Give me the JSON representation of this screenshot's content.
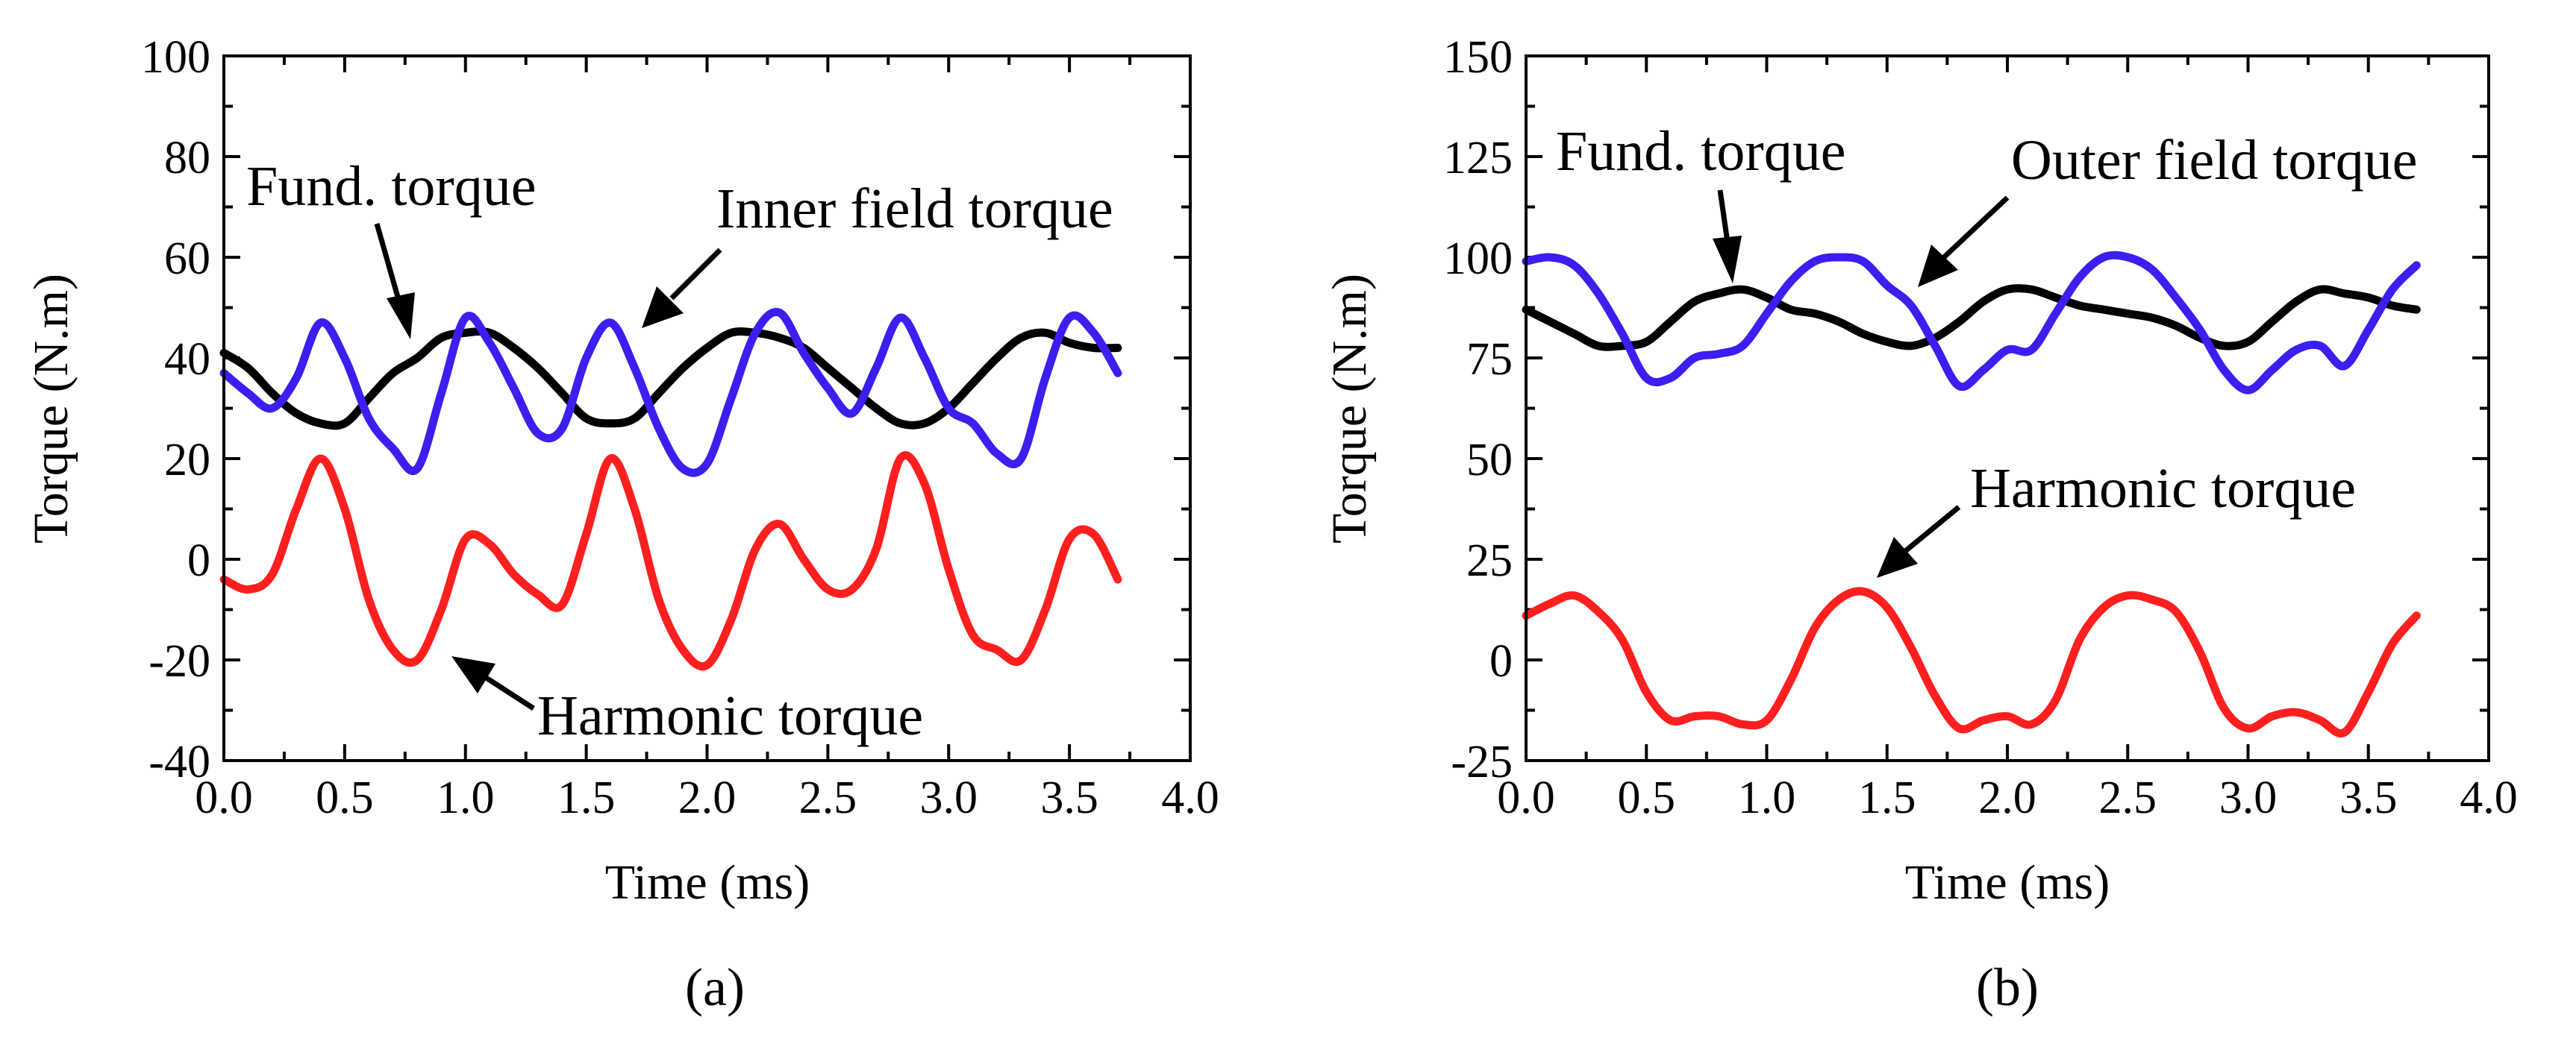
{
  "chart_data": [
    {
      "panel": "(a)",
      "type": "line",
      "xlabel": "Time (ms)",
      "ylabel": "Torque (N.m)",
      "xlim": [
        0,
        4
      ],
      "ylim": [
        -40,
        100
      ],
      "xticks": [
        "0.0",
        "0.5",
        "1.0",
        "1.5",
        "2.0",
        "2.5",
        "3.0",
        "3.5",
        "4.0"
      ],
      "yticks": [
        "-40",
        "-20",
        "0",
        "20",
        "40",
        "60",
        "80",
        "100"
      ],
      "series": [
        {
          "name": "Fund. torque",
          "color": "#000000",
          "x": [
            0,
            0.1,
            0.2,
            0.3,
            0.4,
            0.5,
            0.6,
            0.7,
            0.8,
            0.9,
            1.0,
            1.1,
            1.2,
            1.3,
            1.4,
            1.5,
            1.6,
            1.7,
            1.8,
            1.9,
            2.0,
            2.1,
            2.2,
            2.3,
            2.4,
            2.5,
            2.6,
            2.7,
            2.8,
            2.9,
            3.0,
            3.1,
            3.2,
            3.3,
            3.4,
            3.5,
            3.6,
            3.7
          ],
          "y": [
            41,
            38,
            33,
            29,
            27,
            27,
            32,
            37,
            40,
            44,
            45,
            45,
            42,
            38,
            33,
            28,
            27,
            28,
            33,
            38,
            42,
            45,
            45,
            44,
            42,
            38,
            34,
            30,
            27,
            27,
            30,
            35,
            40,
            44,
            45,
            43,
            42,
            42
          ]
        },
        {
          "name": "Inner field torque",
          "color": "#3a1ff0",
          "x": [
            0,
            0.1,
            0.2,
            0.3,
            0.4,
            0.5,
            0.6,
            0.7,
            0.8,
            0.9,
            1.0,
            1.1,
            1.2,
            1.3,
            1.4,
            1.5,
            1.6,
            1.7,
            1.8,
            1.9,
            2.0,
            2.1,
            2.2,
            2.3,
            2.4,
            2.5,
            2.6,
            2.7,
            2.8,
            2.9,
            3.0,
            3.1,
            3.2,
            3.3,
            3.4,
            3.5,
            3.6,
            3.7
          ],
          "y": [
            37,
            33,
            30,
            36,
            47,
            40,
            28,
            22,
            18,
            33,
            48,
            43,
            34,
            25,
            26,
            40,
            47,
            38,
            26,
            18,
            19,
            32,
            45,
            49,
            41,
            34,
            29,
            38,
            48,
            40,
            30,
            27,
            21,
            20,
            36,
            48,
            45,
            37
          ]
        },
        {
          "name": "Harmonic torque",
          "color": "#ff1f1f",
          "x": [
            0,
            0.1,
            0.2,
            0.3,
            0.4,
            0.5,
            0.6,
            0.7,
            0.8,
            0.9,
            1.0,
            1.1,
            1.2,
            1.3,
            1.4,
            1.5,
            1.6,
            1.7,
            1.8,
            1.9,
            2.0,
            2.1,
            2.2,
            2.3,
            2.4,
            2.5,
            2.6,
            2.7,
            2.8,
            2.9,
            3.0,
            3.1,
            3.2,
            3.3,
            3.4,
            3.5,
            3.6,
            3.7
          ],
          "y": [
            -4,
            -6,
            -3,
            10,
            20,
            10,
            -8,
            -18,
            -20,
            -10,
            4,
            3,
            -3,
            -7,
            -9,
            5,
            20,
            10,
            -8,
            -18,
            -21,
            -12,
            2,
            7,
            0,
            -6,
            -6,
            2,
            20,
            15,
            -2,
            -15,
            -18,
            -20,
            -10,
            4,
            5,
            -4
          ]
        }
      ],
      "annotations": [
        {
          "text": "Fund. torque"
        },
        {
          "text": "Inner field torque"
        },
        {
          "text": "Harmonic torque"
        }
      ]
    },
    {
      "panel": "(b)",
      "type": "line",
      "xlabel": "Time (ms)",
      "ylabel": "Torque (N.m)",
      "xlim": [
        0,
        4
      ],
      "ylim": [
        -25,
        150
      ],
      "xticks": [
        "0.0",
        "0.5",
        "1.0",
        "1.5",
        "2.0",
        "2.5",
        "3.0",
        "3.5",
        "4.0"
      ],
      "yticks": [
        "-25",
        "0",
        "25",
        "50",
        "75",
        "100",
        "125",
        "150"
      ],
      "series": [
        {
          "name": "Fund. torque",
          "color": "#000000",
          "x": [
            0,
            0.1,
            0.2,
            0.3,
            0.4,
            0.5,
            0.6,
            0.7,
            0.8,
            0.9,
            1.0,
            1.1,
            1.2,
            1.3,
            1.4,
            1.5,
            1.6,
            1.7,
            1.8,
            1.9,
            2.0,
            2.1,
            2.2,
            2.3,
            2.4,
            2.5,
            2.6,
            2.7,
            2.8,
            2.9,
            3.0,
            3.1,
            3.2,
            3.3,
            3.4,
            3.5,
            3.6,
            3.7
          ],
          "y": [
            87,
            84,
            81,
            78,
            78,
            79,
            84,
            89,
            91,
            92,
            90,
            87,
            86,
            84,
            81,
            79,
            78,
            80,
            84,
            89,
            92,
            92,
            90,
            88,
            87,
            86,
            85,
            83,
            80,
            78,
            79,
            84,
            89,
            92,
            91,
            90,
            88,
            87
          ]
        },
        {
          "name": "Outer field torque",
          "color": "#3a1ff0",
          "x": [
            0,
            0.1,
            0.2,
            0.3,
            0.4,
            0.5,
            0.6,
            0.7,
            0.8,
            0.9,
            1.0,
            1.1,
            1.2,
            1.3,
            1.4,
            1.5,
            1.6,
            1.7,
            1.8,
            1.9,
            2.0,
            2.1,
            2.2,
            2.3,
            2.4,
            2.5,
            2.6,
            2.7,
            2.8,
            2.9,
            3.0,
            3.1,
            3.2,
            3.3,
            3.4,
            3.5,
            3.6,
            3.7
          ],
          "y": [
            99,
            100,
            98,
            91,
            81,
            70,
            70,
            75,
            76,
            78,
            86,
            94,
            99,
            100,
            99,
            93,
            88,
            78,
            68,
            72,
            77,
            77,
            86,
            95,
            100,
            100,
            97,
            90,
            82,
            72,
            67,
            72,
            77,
            78,
            73,
            82,
            92,
            98
          ]
        },
        {
          "name": "Harmonic torque",
          "color": "#ff1f1f",
          "x": [
            0,
            0.1,
            0.2,
            0.3,
            0.4,
            0.5,
            0.6,
            0.7,
            0.8,
            0.9,
            1.0,
            1.1,
            1.2,
            1.3,
            1.4,
            1.5,
            1.6,
            1.7,
            1.8,
            1.9,
            2.0,
            2.1,
            2.2,
            2.3,
            2.4,
            2.5,
            2.6,
            2.7,
            2.8,
            2.9,
            3.0,
            3.1,
            3.2,
            3.3,
            3.4,
            3.5,
            3.6,
            3.7
          ],
          "y": [
            11,
            14,
            16,
            12,
            5,
            -8,
            -15,
            -14,
            -14,
            -16,
            -15,
            -5,
            8,
            15,
            17,
            13,
            3,
            -9,
            -17,
            -15,
            -14,
            -16,
            -10,
            5,
            13,
            16,
            15,
            12,
            2,
            -12,
            -17,
            -14,
            -13,
            -15,
            -18,
            -8,
            4,
            11
          ]
        }
      ],
      "annotations": [
        {
          "text": "Fund. torque"
        },
        {
          "text": "Outer field torque"
        },
        {
          "text": "Harmonic torque"
        }
      ]
    }
  ]
}
